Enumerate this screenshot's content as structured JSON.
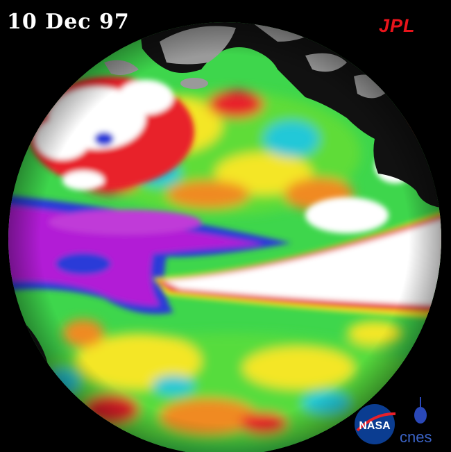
{
  "date": "10 Dec 97",
  "logos": {
    "jpl": "JPL",
    "nasa": "NASA",
    "cnes": "cnes"
  },
  "colors": {
    "background": "#000000",
    "land": "#111111",
    "ice": "#9a9a9a",
    "white_anomaly": "#ffffff",
    "red": "#e8202a",
    "yellow": "#f2ea18",
    "green": "#35d24a",
    "cyan": "#22c8d8",
    "blue": "#2a3ad8",
    "purple": "#b21ad6",
    "jpl_red": "#e8141b",
    "nasa_blue": "#0b3d91"
  }
}
